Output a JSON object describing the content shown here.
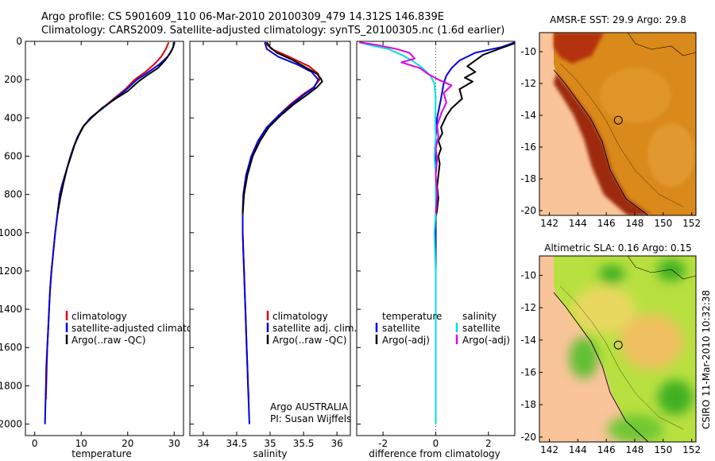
{
  "header": {
    "line1": "Argo profile: CS 5901609_110 06-Mar-2010 20100309_479 14.312S 146.839E",
    "line2": "Climatology: CARS2009. Satellite-adjusted climatology: synTS_20100305.nc (1.6d earlier)"
  },
  "credit": {
    "program": "Argo AUSTRALIA",
    "pi": "PI: Susan Wijffels",
    "timestamp": "CSIRO 11-Mar-2010 10:32:38"
  },
  "colors": {
    "climatology": "#e00000",
    "satellite": "#0000e0",
    "argo": "#000000",
    "sat_salinity": "#00e0e0",
    "argo_salinity": "#e000e0",
    "land": "#f9c49a"
  },
  "chart_data": [
    {
      "id": "temperature",
      "type": "line",
      "xlabel": "temperature",
      "ylabel": "",
      "xlim": [
        -2,
        32
      ],
      "ylim": [
        2060,
        0
      ],
      "xticks": [
        0,
        10,
        20,
        30
      ],
      "yticks": [
        0,
        200,
        400,
        600,
        800,
        1000,
        1200,
        1400,
        1600,
        1800,
        2000
      ],
      "legend": [
        "climatology",
        "satellite-adjusted climatology",
        "Argo(..raw -QC)"
      ],
      "series": [
        {
          "name": "climatology",
          "color": "climatology",
          "points": [
            [
              28.8,
              5
            ],
            [
              28.2,
              40
            ],
            [
              27.2,
              80
            ],
            [
              25.7,
              120
            ],
            [
              23.8,
              160
            ],
            [
              21.5,
              200
            ],
            [
              19.5,
              250
            ],
            [
              17.0,
              300
            ],
            [
              14.5,
              350
            ],
            [
              12.0,
              400
            ],
            [
              10.3,
              450
            ],
            [
              9.2,
              500
            ],
            [
              8.4,
              550
            ],
            [
              7.7,
              600
            ],
            [
              7.1,
              650
            ],
            [
              6.5,
              700
            ],
            [
              5.9,
              750
            ],
            [
              5.4,
              800
            ],
            [
              4.9,
              900
            ],
            [
              4.4,
              1000
            ],
            [
              4.0,
              1100
            ],
            [
              3.6,
              1200
            ],
            [
              3.3,
              1300
            ],
            [
              3.1,
              1400
            ],
            [
              2.9,
              1500
            ],
            [
              2.7,
              1600
            ],
            [
              2.6,
              1700
            ],
            [
              2.5,
              1800
            ],
            [
              2.4,
              1870
            ]
          ]
        },
        {
          "name": "satellite",
          "color": "satellite",
          "points": [
            [
              30.1,
              5
            ],
            [
              29.6,
              40
            ],
            [
              28.6,
              80
            ],
            [
              26.8,
              120
            ],
            [
              24.5,
              160
            ],
            [
              22.0,
              200
            ],
            [
              19.8,
              250
            ],
            [
              17.2,
              300
            ],
            [
              14.6,
              350
            ],
            [
              12.0,
              400
            ],
            [
              10.3,
              450
            ],
            [
              9.2,
              500
            ],
            [
              8.4,
              550
            ],
            [
              7.7,
              600
            ],
            [
              7.1,
              650
            ],
            [
              6.5,
              700
            ],
            [
              5.9,
              750
            ],
            [
              5.4,
              800
            ],
            [
              4.9,
              900
            ],
            [
              4.4,
              1000
            ],
            [
              4.0,
              1100
            ],
            [
              3.6,
              1200
            ],
            [
              3.3,
              1300
            ],
            [
              3.1,
              1400
            ],
            [
              2.9,
              1500
            ],
            [
              2.7,
              1600
            ],
            [
              2.5,
              1700
            ],
            [
              2.4,
              1800
            ],
            [
              2.3,
              1900
            ],
            [
              2.2,
              2000
            ]
          ]
        },
        {
          "name": "argo",
          "color": "argo",
          "points": [
            [
              29.9,
              5
            ],
            [
              29.8,
              30
            ],
            [
              29.2,
              60
            ],
            [
              28.0,
              100
            ],
            [
              26.5,
              140
            ],
            [
              24.0,
              180
            ],
            [
              22.3,
              210
            ],
            [
              20.0,
              260
            ],
            [
              17.4,
              300
            ],
            [
              14.4,
              350
            ],
            [
              12.2,
              400
            ],
            [
              10.6,
              440
            ],
            [
              9.5,
              490
            ],
            [
              8.6,
              540
            ],
            [
              7.8,
              600
            ],
            [
              7.0,
              660
            ],
            [
              6.2,
              740
            ],
            [
              5.5,
              820
            ],
            [
              4.9,
              900
            ]
          ]
        }
      ]
    },
    {
      "id": "salinity",
      "type": "line",
      "xlabel": "salinity",
      "ylabel": "",
      "xlim": [
        33.8,
        36.2
      ],
      "ylim": [
        2060,
        0
      ],
      "xticks": [
        34,
        34.5,
        35,
        35.5,
        36
      ],
      "yticks": [],
      "legend": [
        "climatology",
        "satellite adj. clim.",
        "Argo(..raw -QC)"
      ],
      "series": [
        {
          "name": "climatology",
          "color": "climatology",
          "points": [
            [
              34.92,
              5
            ],
            [
              35.02,
              40
            ],
            [
              35.28,
              80
            ],
            [
              35.58,
              130
            ],
            [
              35.72,
              170
            ],
            [
              35.74,
              200
            ],
            [
              35.65,
              240
            ],
            [
              35.48,
              280
            ],
            [
              35.3,
              330
            ],
            [
              35.12,
              390
            ],
            [
              34.95,
              450
            ],
            [
              34.82,
              520
            ],
            [
              34.72,
              600
            ],
            [
              34.64,
              700
            ],
            [
              34.6,
              800
            ],
            [
              34.59,
              900
            ],
            [
              34.59,
              1000
            ],
            [
              34.6,
              1100
            ],
            [
              34.61,
              1200
            ],
            [
              34.62,
              1300
            ],
            [
              34.63,
              1400
            ],
            [
              34.64,
              1500
            ],
            [
              34.65,
              1600
            ],
            [
              34.66,
              1700
            ],
            [
              34.67,
              1800
            ],
            [
              34.68,
              1870
            ]
          ]
        },
        {
          "name": "satellite",
          "color": "satellite",
          "points": [
            [
              34.92,
              5
            ],
            [
              34.95,
              40
            ],
            [
              35.12,
              80
            ],
            [
              35.4,
              120
            ],
            [
              35.62,
              160
            ],
            [
              35.72,
              200
            ],
            [
              35.66,
              240
            ],
            [
              35.5,
              280
            ],
            [
              35.32,
              330
            ],
            [
              35.12,
              390
            ],
            [
              34.95,
              450
            ],
            [
              34.82,
              520
            ],
            [
              34.72,
              600
            ],
            [
              34.64,
              700
            ],
            [
              34.6,
              800
            ],
            [
              34.59,
              900
            ],
            [
              34.59,
              1000
            ],
            [
              34.6,
              1100
            ],
            [
              34.61,
              1200
            ],
            [
              34.62,
              1300
            ],
            [
              34.63,
              1400
            ],
            [
              34.64,
              1500
            ],
            [
              34.65,
              1600
            ],
            [
              34.66,
              1700
            ],
            [
              34.67,
              1800
            ],
            [
              34.68,
              1900
            ],
            [
              34.69,
              2000
            ]
          ]
        },
        {
          "name": "argo",
          "color": "argo",
          "points": [
            [
              34.95,
              5
            ],
            [
              35.0,
              30
            ],
            [
              35.1,
              60
            ],
            [
              35.35,
              100
            ],
            [
              35.55,
              140
            ],
            [
              35.7,
              170
            ],
            [
              35.76,
              195
            ],
            [
              35.78,
              210
            ],
            [
              35.7,
              240
            ],
            [
              35.55,
              280
            ],
            [
              35.35,
              330
            ],
            [
              35.15,
              390
            ],
            [
              34.98,
              450
            ],
            [
              34.85,
              520
            ],
            [
              34.74,
              600
            ],
            [
              34.66,
              700
            ],
            [
              34.61,
              800
            ],
            [
              34.59,
              900
            ]
          ]
        }
      ]
    },
    {
      "id": "difference",
      "type": "line",
      "xlabel": "difference from climatology",
      "ylabel": "",
      "xlim": [
        -3,
        3
      ],
      "ylim": [
        2060,
        0
      ],
      "xticks": [
        -2,
        0,
        2
      ],
      "yticks": [],
      "legend": [
        "temperature",
        "satellite",
        "Argo(-adj)",
        "salinity",
        "satellite",
        "Argo(-adj)"
      ],
      "series": [
        {
          "name": "temperature satellite",
          "color": "satellite",
          "points": [
            [
              3.0,
              5
            ],
            [
              2.5,
              30
            ],
            [
              1.5,
              60
            ],
            [
              0.9,
              100
            ],
            [
              0.6,
              140
            ],
            [
              0.4,
              180
            ],
            [
              0.3,
              220
            ],
            [
              0.2,
              300
            ],
            [
              0.05,
              400
            ],
            [
              0.0,
              500
            ],
            [
              0.0,
              600
            ],
            [
              0.0,
              700
            ],
            [
              0.0,
              800
            ],
            [
              0.0,
              900
            ],
            [
              0.0,
              1000
            ],
            [
              0.0,
              1200
            ],
            [
              0.0,
              1400
            ],
            [
              0.0,
              1600
            ],
            [
              0.0,
              1800
            ],
            [
              0.0,
              2000
            ]
          ]
        },
        {
          "name": "temperature Argo(-adj)",
          "color": "argo",
          "points": [
            [
              3.0,
              10
            ],
            [
              2.4,
              40
            ],
            [
              1.8,
              70
            ],
            [
              1.5,
              100
            ],
            [
              1.2,
              130
            ],
            [
              1.5,
              160
            ],
            [
              1.1,
              190
            ],
            [
              1.4,
              210
            ],
            [
              0.9,
              250
            ],
            [
              1.0,
              300
            ],
            [
              0.6,
              350
            ],
            [
              0.4,
              390
            ],
            [
              0.3,
              420
            ],
            [
              0.2,
              450
            ],
            [
              0.25,
              480
            ],
            [
              0.1,
              520
            ],
            [
              0.2,
              560
            ],
            [
              0.1,
              600
            ],
            [
              0.15,
              640
            ],
            [
              0.1,
              700
            ],
            [
              0.05,
              760
            ],
            [
              0.1,
              820
            ],
            [
              0.05,
              880
            ],
            [
              0.0,
              920
            ],
            [
              0.0,
              960
            ]
          ]
        },
        {
          "name": "salinity satellite",
          "color": "sat_salinity",
          "points": [
            [
              -2.9,
              5
            ],
            [
              -2.5,
              20
            ],
            [
              -1.8,
              40
            ],
            [
              -1.3,
              70
            ],
            [
              -0.9,
              100
            ],
            [
              -0.5,
              140
            ],
            [
              -0.2,
              180
            ],
            [
              -0.05,
              220
            ],
            [
              0.0,
              300
            ],
            [
              -0.02,
              400
            ],
            [
              0.0,
              500
            ],
            [
              -0.05,
              600
            ],
            [
              0.0,
              700
            ],
            [
              0.0,
              800
            ],
            [
              0.0,
              900
            ],
            [
              -0.05,
              1000
            ],
            [
              0.0,
              1200
            ],
            [
              0.0,
              1400
            ],
            [
              0.0,
              1600
            ],
            [
              0.0,
              1800
            ],
            [
              0.0,
              2000
            ]
          ]
        },
        {
          "name": "salinity Argo(-adj)",
          "color": "argo_salinity",
          "points": [
            [
              -2.9,
              5
            ],
            [
              -2.2,
              20
            ],
            [
              -1.5,
              40
            ],
            [
              -1.0,
              60
            ],
            [
              -0.8,
              90
            ],
            [
              -1.3,
              110
            ],
            [
              -0.6,
              140
            ],
            [
              -0.3,
              170
            ],
            [
              0.1,
              200
            ],
            [
              0.6,
              230
            ],
            [
              0.3,
              270
            ],
            [
              0.4,
              320
            ],
            [
              0.2,
              380
            ],
            [
              0.05,
              440
            ],
            [
              0.1,
              500
            ],
            [
              0.0,
              560
            ],
            [
              0.05,
              620
            ],
            [
              0.0,
              700
            ],
            [
              0.05,
              800
            ],
            [
              0.0,
              900
            ]
          ]
        }
      ]
    },
    {
      "id": "sst-map",
      "type": "heatmap",
      "title": "AMSR-E SST: 29.9 Argo: 29.8",
      "xlim": [
        141.3,
        152.3
      ],
      "ylim": [
        -20.3,
        -8.8
      ],
      "xticks": [
        142,
        144,
        146,
        148,
        150,
        152
      ],
      "yticks": [
        -10,
        -12,
        -14,
        -16,
        -18,
        -20
      ],
      "float_position": [
        146.84,
        -14.31
      ]
    },
    {
      "id": "sla-map",
      "type": "heatmap",
      "title": "Altimetric SLA: 0.16 Argo: 0.15",
      "xlim": [
        141.3,
        152.3
      ],
      "ylim": [
        -20.3,
        -8.8
      ],
      "xticks": [
        142,
        144,
        146,
        148,
        150,
        152
      ],
      "yticks": [
        -10,
        -12,
        -14,
        -16,
        -18,
        -20
      ],
      "float_position": [
        146.84,
        -14.31
      ]
    }
  ]
}
